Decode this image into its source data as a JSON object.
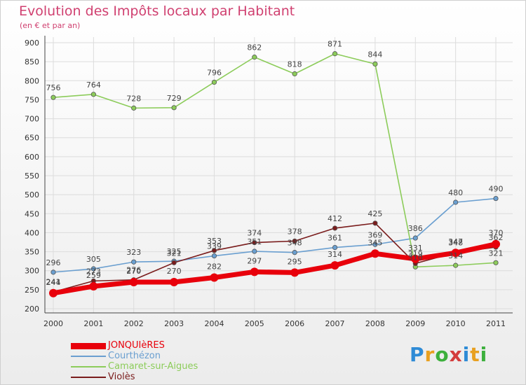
{
  "header": {
    "title": "Evolution des Impôts locaux par Habitant",
    "subtitle": "(en € et par an)"
  },
  "logo": {
    "text": "Proxiti",
    "letter_colors": [
      "#2e8bd6",
      "#e8a020",
      "#3db03d",
      "#d43c3c",
      "#2e8bd6",
      "#e8a020",
      "#3db03d"
    ]
  },
  "chart_data": {
    "type": "line",
    "x": [
      "2000",
      "2001",
      "2002",
      "2003",
      "2004",
      "2005",
      "2006",
      "2007",
      "2008",
      "2009",
      "2010",
      "2011"
    ],
    "ylim": [
      200,
      900
    ],
    "yticks": [
      200,
      250,
      300,
      350,
      400,
      450,
      500,
      550,
      600,
      650,
      700,
      750,
      800,
      850,
      900
    ],
    "grid": true,
    "legend_position": "bottom-left",
    "series": [
      {
        "name": "JONQUIèRES",
        "color": "#e8000b",
        "values": [
          241,
          259,
          270,
          270,
          282,
          297,
          295,
          314,
          345,
          331,
          347,
          370
        ],
        "thick": true
      },
      {
        "name": "Courthézon",
        "color": "#6a9fd0",
        "values": [
          296,
          305,
          323,
          325,
          339,
          351,
          348,
          361,
          369,
          386,
          480,
          490
        ]
      },
      {
        "name": "Camaret-sur-Aigues",
        "color": "#8ccc5a",
        "values": [
          756,
          764,
          728,
          729,
          796,
          862,
          818,
          871,
          844,
          310,
          314,
          321
        ]
      },
      {
        "name": "Violès",
        "color": "#7a1c1c",
        "values": [
          244,
          273,
          276,
          321,
          353,
          374,
          378,
          412,
          425,
          319,
          348,
          362
        ]
      }
    ]
  }
}
